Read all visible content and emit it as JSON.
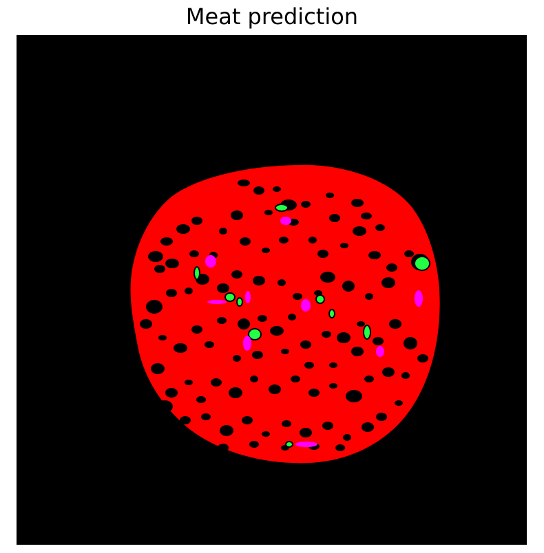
{
  "figure": {
    "title": "Meat prediction"
  },
  "segmentation": {
    "background_color": "#000000",
    "classes": [
      {
        "color": "#ff0000"
      },
      {
        "color": "#22ff44"
      },
      {
        "color": "#ff00ff"
      },
      {
        "color": "#000000"
      }
    ]
  }
}
